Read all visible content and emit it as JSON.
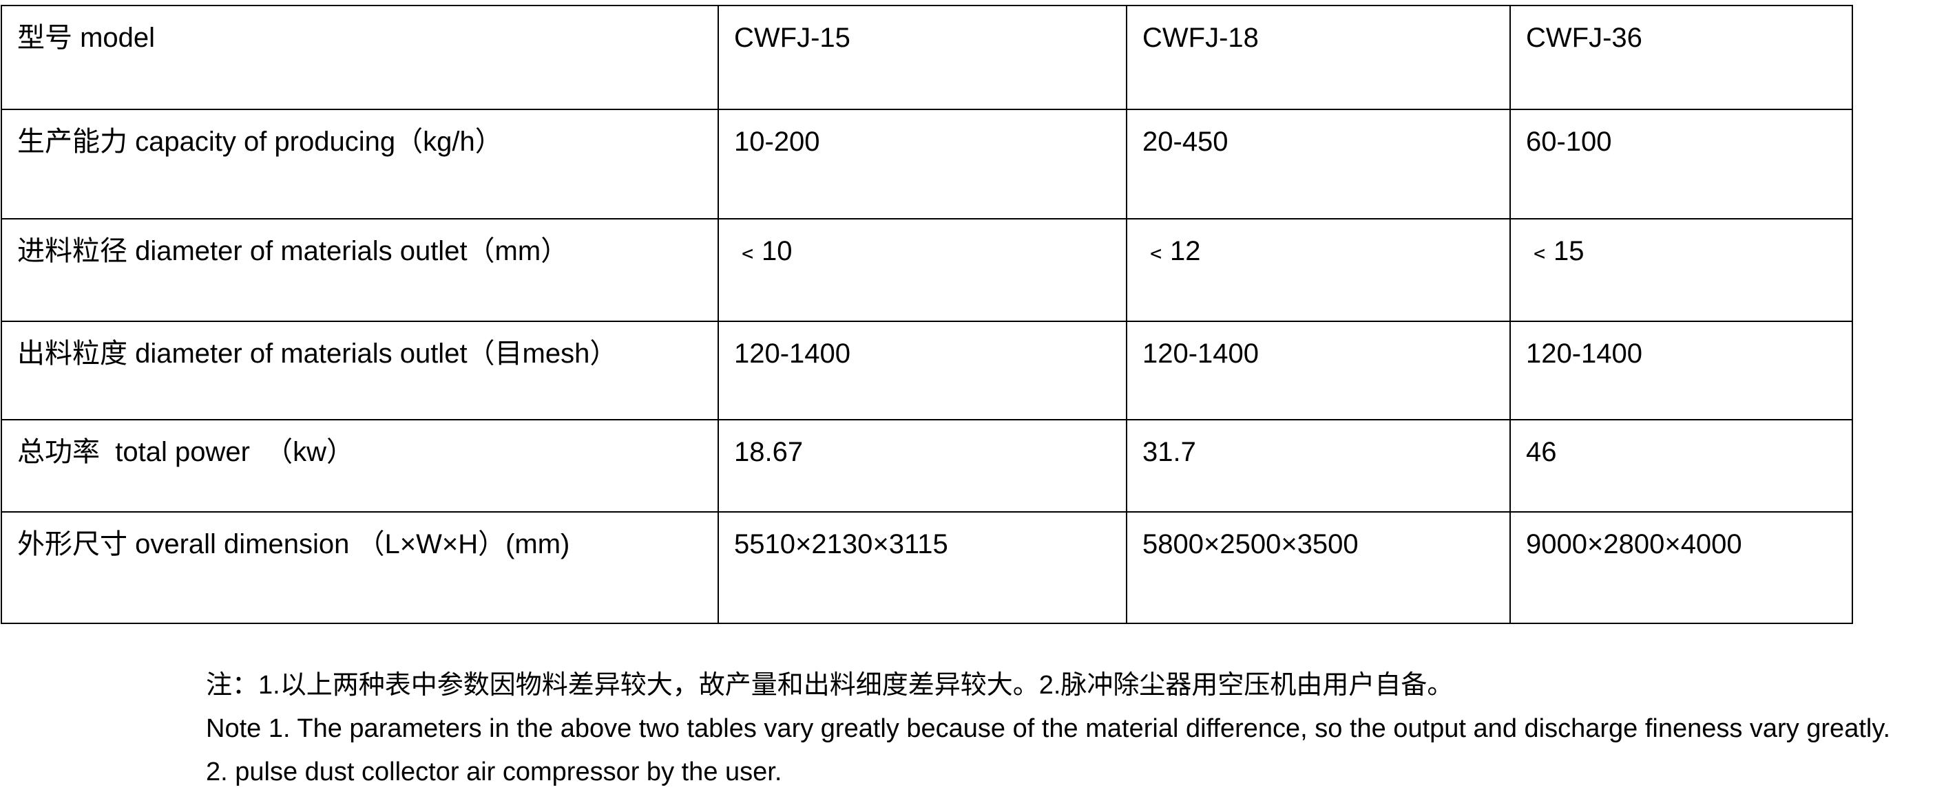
{
  "table": {
    "header": {
      "label": "型号  model",
      "models": [
        "CWFJ-15",
        "CWFJ-18",
        "CWFJ-36"
      ]
    },
    "rows": [
      {
        "label": "生产能力  capacity of producing（kg/h）",
        "values": [
          "10-200",
          "20-450",
          "60-100"
        ]
      },
      {
        "label": "进料粒径  diameter of materials outlet（mm）",
        "values": [
          "﹤10",
          "﹤12",
          "﹤15"
        ]
      },
      {
        "label": "出料粒度   diameter of materials outlet（目mesh）",
        "values": [
          "120-1400",
          "120-1400",
          "120-1400"
        ]
      },
      {
        "label": "总功率  total power  （kw）",
        "values": [
          "18.67",
          "31.7",
          "46"
        ]
      },
      {
        "label": "外形尺寸  overall dimension （L×W×H）(mm)",
        "values": [
          "5510×2130×3115",
          "5800×2500×3500",
          "9000×2800×4000"
        ]
      }
    ]
  },
  "notes": [
    "注：1.以上两种表中参数因物料差异较大，故产量和出料细度差异较大。2.脉冲除尘器用空压机由用户自备。",
    "Note 1. The parameters in the above two tables vary greatly because of the material difference, so the output and discharge fineness vary greatly.",
    "2. pulse dust collector air compressor by the user."
  ]
}
